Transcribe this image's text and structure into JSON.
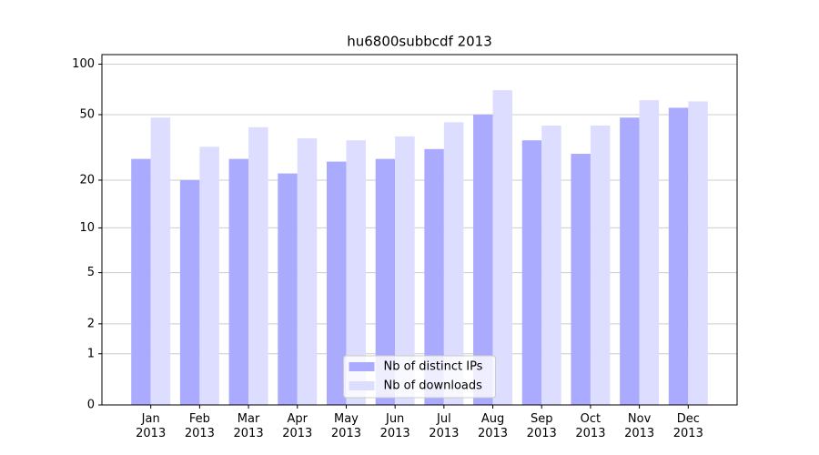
{
  "chart_data": {
    "type": "bar",
    "title": "hu6800subbcdf 2013",
    "categories": [
      "Jan\n2013",
      "Feb\n2013",
      "Mar\n2013",
      "Apr\n2013",
      "May\n2013",
      "Jun\n2013",
      "Jul\n2013",
      "Aug\n2013",
      "Sep\n2013",
      "Oct\n2013",
      "Nov\n2013",
      "Dec\n2013"
    ],
    "series": [
      {
        "name": "Nb of distinct IPs",
        "color": "#aaaaff",
        "values": [
          27,
          20,
          27,
          22,
          26,
          27,
          31,
          50,
          35,
          29,
          48,
          55
        ]
      },
      {
        "name": "Nb of downloads",
        "color": "#ddddff",
        "values": [
          48,
          32,
          42,
          36,
          35,
          37,
          45,
          70,
          43,
          43,
          61,
          60
        ]
      }
    ],
    "yscale": "log1p",
    "ylim": [
      0,
      114
    ],
    "yticks": [
      0,
      1,
      2,
      5,
      10,
      20,
      50,
      100
    ],
    "grid": true,
    "legend": "lower center"
  }
}
